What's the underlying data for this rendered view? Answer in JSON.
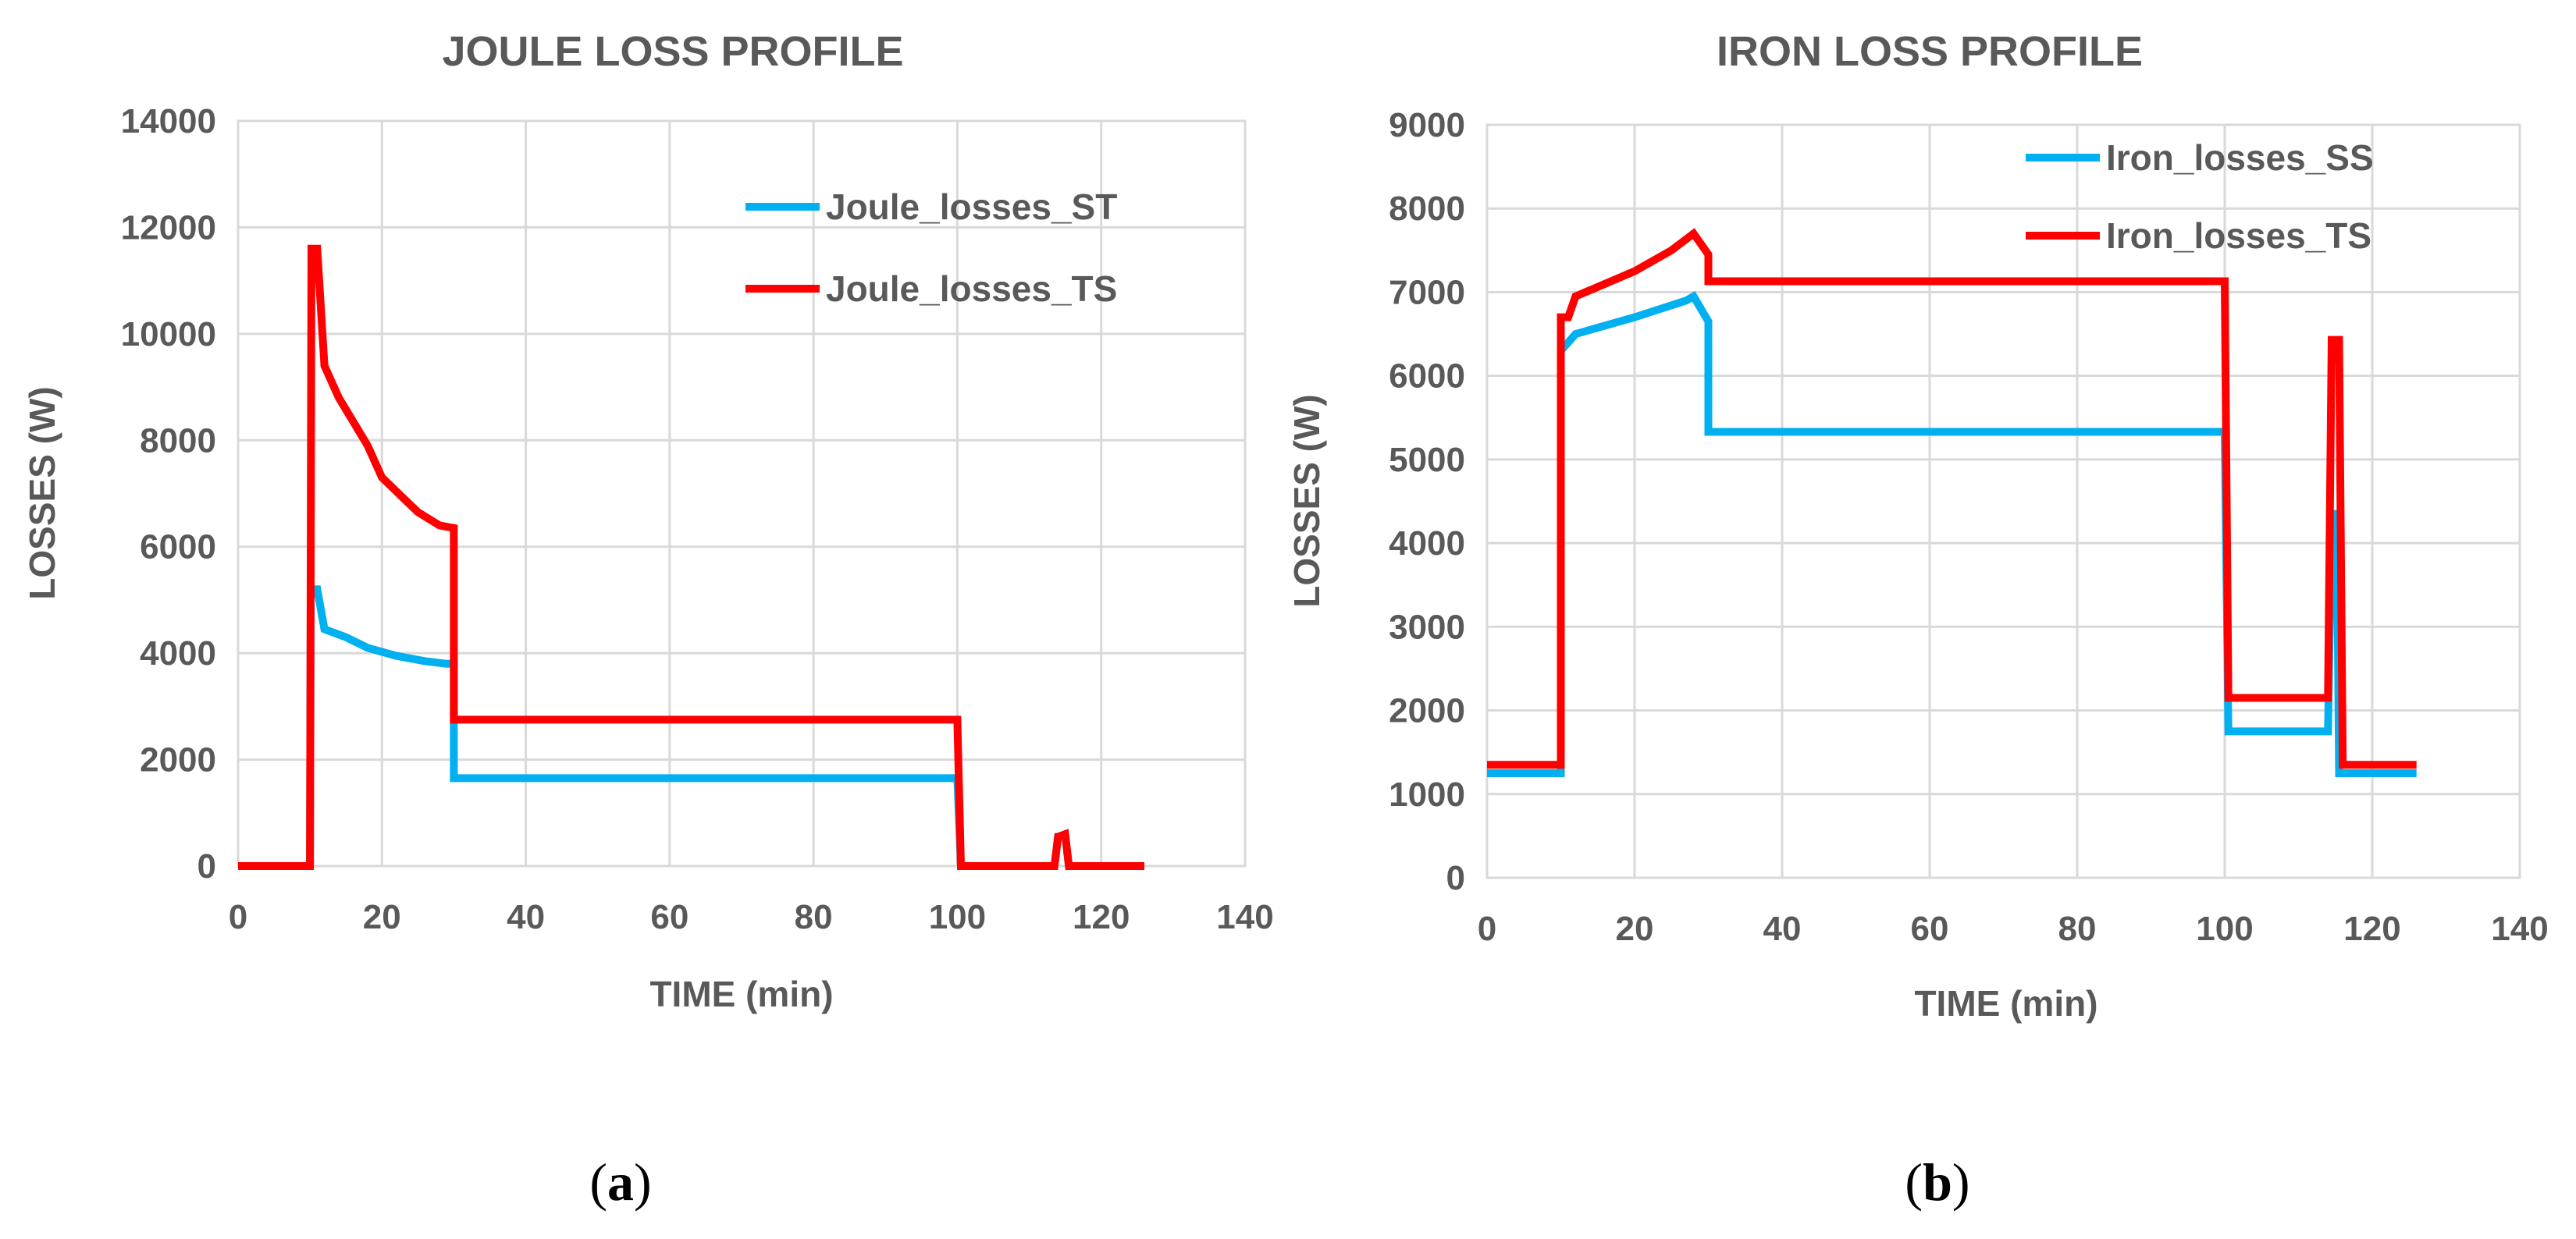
{
  "chart_data": [
    {
      "type": "line",
      "title": "JOULE LOSS PROFILE",
      "xlabel": "TIME (min)",
      "ylabel": "LOSSES (W)",
      "xlim": [
        0,
        140
      ],
      "ylim": [
        0,
        14000
      ],
      "xticks": [
        0,
        20,
        40,
        60,
        80,
        100,
        120,
        140
      ],
      "yticks": [
        0,
        2000,
        4000,
        6000,
        8000,
        10000,
        12000,
        14000
      ],
      "grid": true,
      "legend_position": "top-right",
      "caption_letter": "a",
      "series": [
        {
          "name": "Joule_losses_ST",
          "color": "#00B0F0",
          "x": [
            0,
            10,
            10.1,
            11,
            12,
            15,
            18,
            22,
            26,
            29,
            30,
            30,
            100,
            100.5,
            113.5,
            114,
            115,
            115.5,
            126
          ],
          "y": [
            0,
            0,
            5200,
            5200,
            4450,
            4300,
            4100,
            3950,
            3850,
            3800,
            3800,
            1650,
            1650,
            0,
            0,
            550,
            550,
            0,
            0
          ]
        },
        {
          "name": "Joule_losses_TS",
          "color": "#FF0000",
          "x": [
            0,
            10,
            10.2,
            11,
            12,
            14,
            18,
            20,
            25,
            28,
            30,
            30,
            100,
            100.5,
            113.5,
            114,
            115,
            115.5,
            126
          ],
          "y": [
            0,
            0,
            11600,
            11600,
            9400,
            8800,
            7900,
            7300,
            6650,
            6400,
            6350,
            2750,
            2750,
            0,
            0,
            550,
            600,
            0,
            0
          ]
        }
      ]
    },
    {
      "type": "line",
      "title": "IRON LOSS PROFILE",
      "xlabel": "TIME (min)",
      "ylabel": "LOSSES (W)",
      "xlim": [
        0,
        140
      ],
      "ylim": [
        0,
        9000
      ],
      "xticks": [
        0,
        20,
        40,
        60,
        80,
        100,
        120,
        140
      ],
      "yticks": [
        0,
        1000,
        2000,
        3000,
        4000,
        5000,
        6000,
        7000,
        8000,
        9000
      ],
      "grid": true,
      "legend_position": "top-right",
      "caption_letter": "b",
      "series": [
        {
          "name": "Iron_losses_SS",
          "color": "#00B0F0",
          "x": [
            0,
            10,
            10,
            11,
            12,
            20,
            27,
            28,
            30,
            30,
            100,
            100.5,
            114,
            114.5,
            115.2,
            115.5,
            126
          ],
          "y": [
            1250,
            1250,
            6300,
            6400,
            6500,
            6700,
            6900,
            6950,
            6650,
            5330,
            5330,
            1750,
            1750,
            4350,
            4350,
            1250,
            1250
          ]
        },
        {
          "name": "Iron_losses_TS",
          "color": "#FF0000",
          "x": [
            0,
            10,
            10,
            11,
            12,
            20,
            25,
            28,
            30,
            30,
            100,
            100.5,
            114,
            114.5,
            115.5,
            116,
            126
          ],
          "y": [
            1350,
            1350,
            6700,
            6700,
            6950,
            7250,
            7500,
            7700,
            7450,
            7130,
            7130,
            2150,
            2150,
            6430,
            6430,
            1350,
            1350
          ]
        }
      ]
    }
  ]
}
